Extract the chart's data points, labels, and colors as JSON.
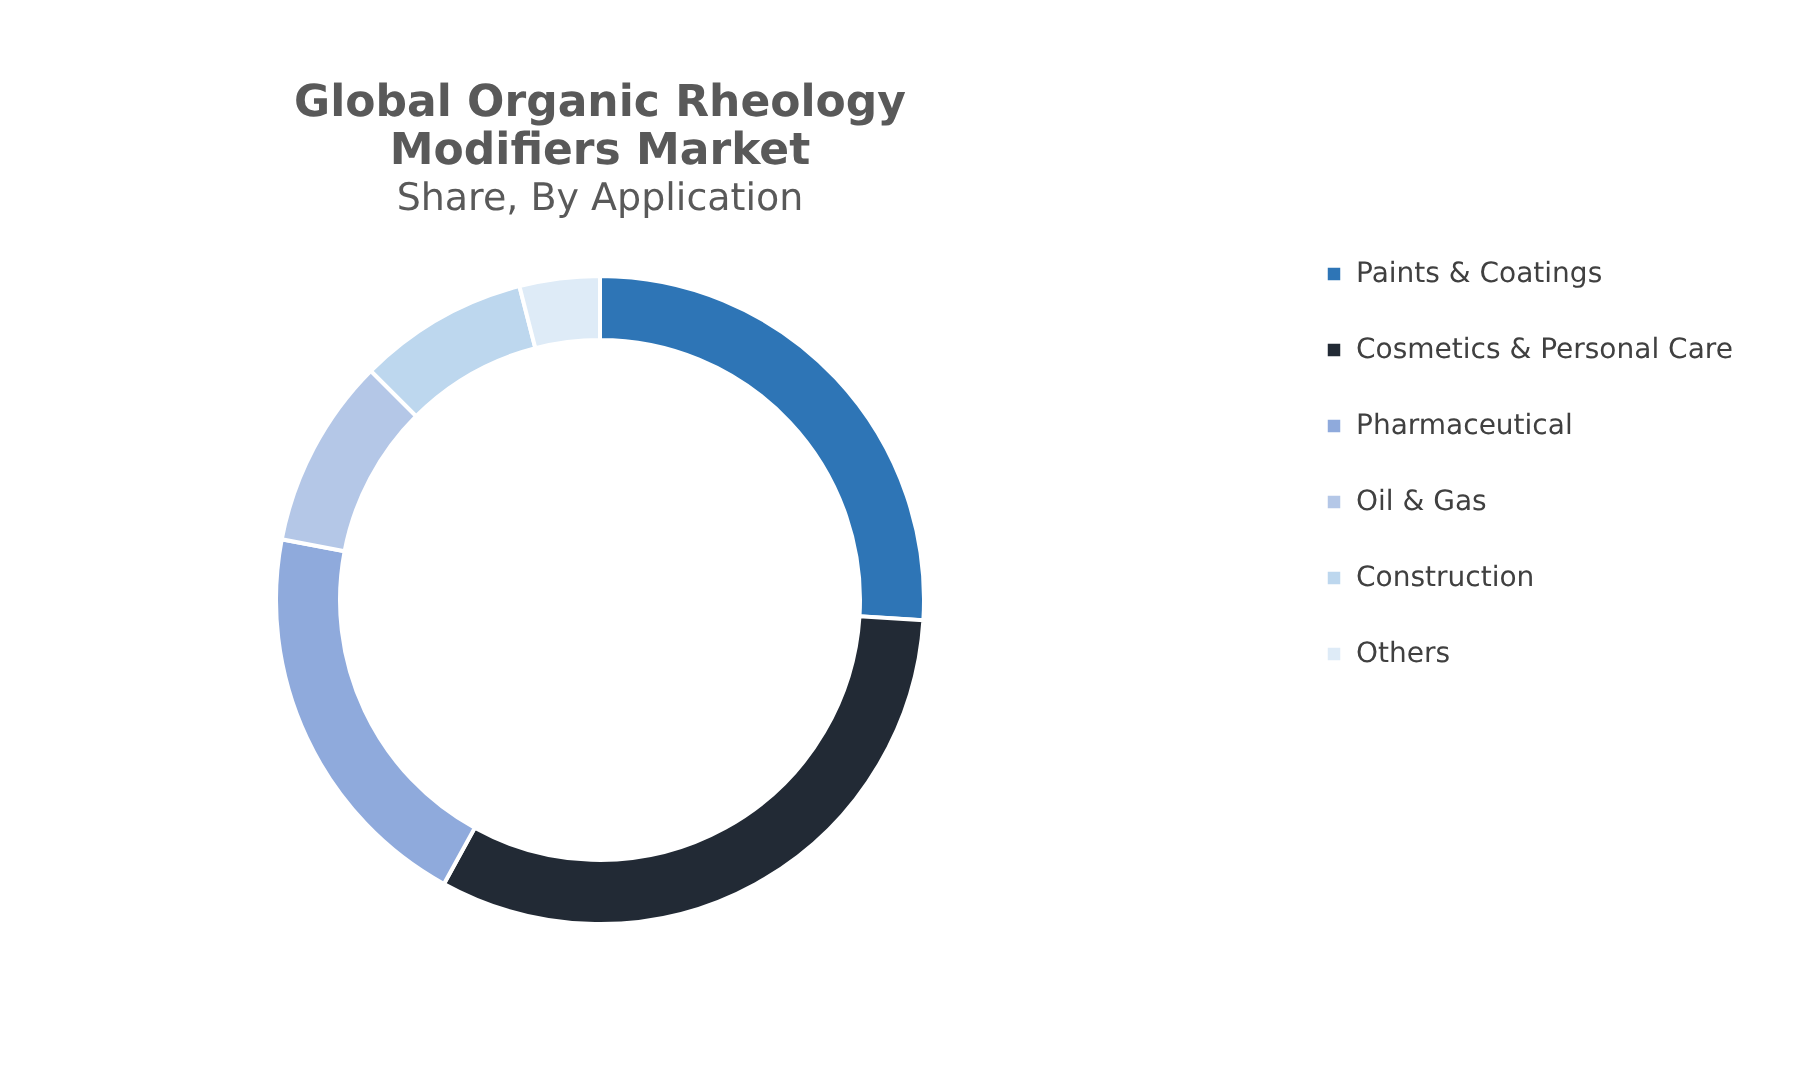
{
  "chart_data": {
    "type": "donut",
    "title": "Global Organic Rheology Modifiers Market",
    "subtitle": "Share, By Application",
    "categories": [
      "Paints & Coatings",
      "Cosmetics & Personal Care",
      "Pharmaceutical",
      "Oil & Gas",
      "Construction",
      "Others"
    ],
    "values": [
      26,
      32,
      20,
      9.5,
      8.5,
      4
    ],
    "colors": [
      "#2e75b6",
      "#222a35",
      "#8faadc",
      "#b4c7e7",
      "#bdd7ee",
      "#deebf7"
    ],
    "legend": "right"
  }
}
